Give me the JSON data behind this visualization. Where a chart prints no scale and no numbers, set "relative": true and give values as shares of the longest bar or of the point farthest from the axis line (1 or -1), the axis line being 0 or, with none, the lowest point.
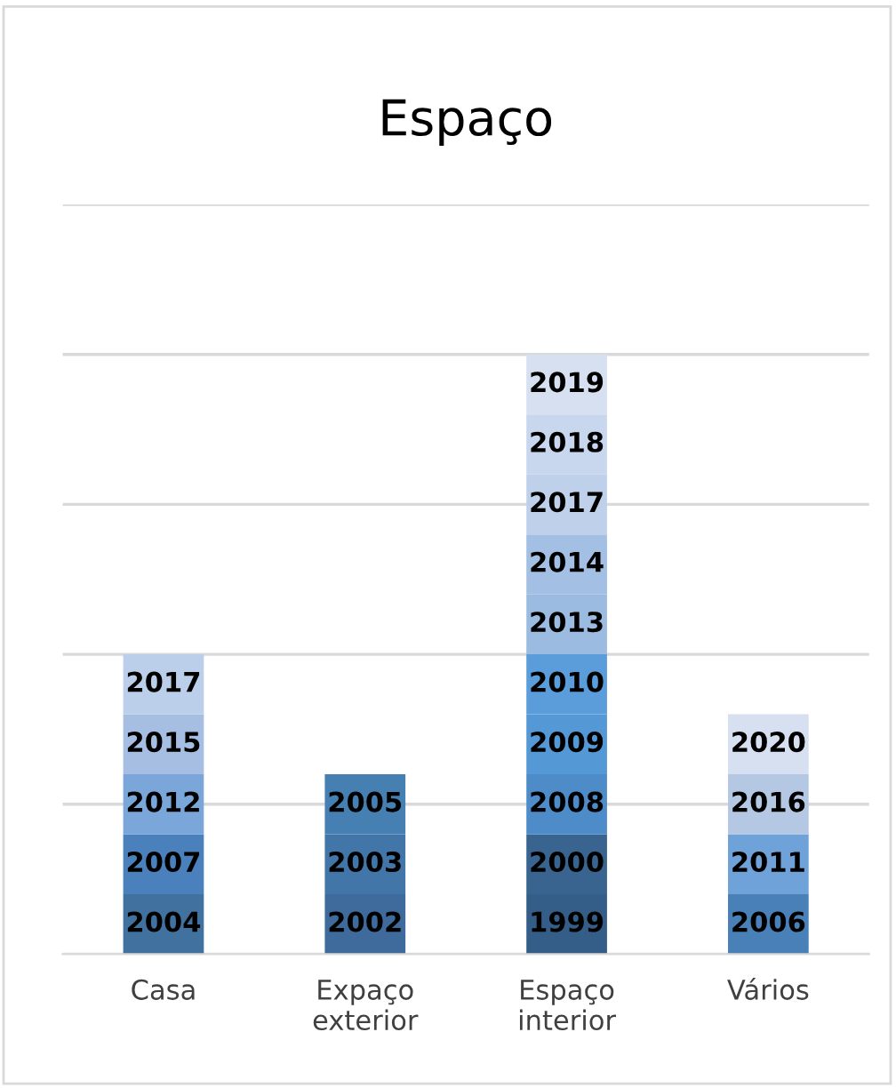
{
  "chart_data": {
    "type": "bar",
    "title": "Espaço",
    "categories": [
      "Casa",
      "Expaço\nexterior",
      "Espaço\ninterior",
      "Vários"
    ],
    "stacked": true,
    "relative": true,
    "grid": "y",
    "legend": false,
    "series": [
      {
        "values": [
          0.1,
          0.1,
          0.1,
          0.1
        ],
        "colors": [
          "#41719f",
          "#3e6b9b",
          "#345d88",
          "#4a80b8"
        ]
      },
      {
        "values": [
          0.1,
          0.1,
          0.1,
          0.1
        ],
        "colors": [
          "#4a80bb",
          "#4276a8",
          "#39648f",
          "#6ea2d8"
        ]
      },
      {
        "values": [
          0.1,
          0.1,
          0.1,
          0.1
        ],
        "colors": [
          "#7aa6da",
          "#4680b2",
          "#4d8cc9",
          "#b4c8e4"
        ]
      },
      {
        "values": [
          0.1,
          null,
          0.1,
          0.1
        ],
        "colors": [
          "#a6bee2",
          null,
          "#5499d6",
          "#d6e0f0"
        ]
      },
      {
        "values": [
          0.1,
          null,
          0.1,
          null
        ],
        "colors": [
          "#bccfea",
          null,
          "#5b9ddb",
          null
        ]
      },
      {
        "values": [
          null,
          null,
          0.1,
          null
        ],
        "colors": [
          null,
          null,
          "#9cbbe0",
          null
        ]
      },
      {
        "values": [
          null,
          null,
          0.1,
          null
        ],
        "colors": [
          null,
          null,
          "#a3c0e4",
          null
        ]
      },
      {
        "values": [
          null,
          null,
          0.1,
          null
        ],
        "colors": [
          null,
          null,
          "#bfd1ea",
          null
        ]
      },
      {
        "values": [
          null,
          null,
          0.1,
          null
        ],
        "colors": [
          null,
          null,
          "#c9d7ee",
          null
        ]
      },
      {
        "values": [
          null,
          null,
          0.1,
          null
        ],
        "colors": [
          null,
          null,
          "#d6e0f0",
          null
        ]
      }
    ],
    "annotations": [
      "2004",
      "2007",
      "2012",
      "2015",
      "2017",
      "2002",
      "2003",
      "2005",
      "1999",
      "2000",
      "2008",
      "2009",
      "2010",
      "2013",
      "2014",
      "2017",
      "2018",
      "2019",
      "2006",
      "2011",
      "2016",
      "2020"
    ]
  }
}
